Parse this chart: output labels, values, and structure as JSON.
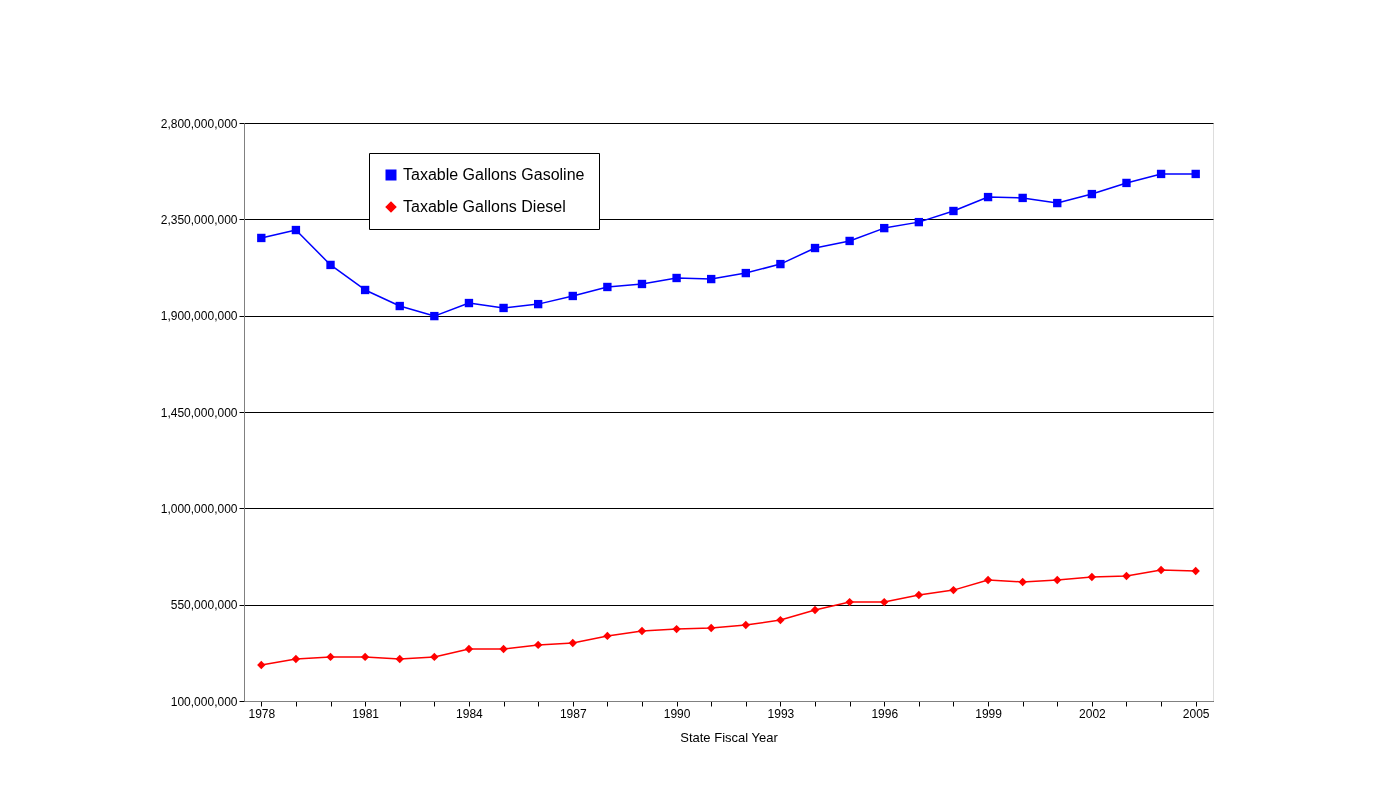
{
  "chart_data": {
    "type": "line",
    "xlabel": "State Fiscal Year",
    "x": [
      1978,
      1979,
      1980,
      1981,
      1982,
      1983,
      1984,
      1985,
      1986,
      1987,
      1988,
      1989,
      1990,
      1991,
      1992,
      1993,
      1994,
      1995,
      1996,
      1997,
      1998,
      1999,
      2000,
      2001,
      2002,
      2003,
      2004,
      2005
    ],
    "series": [
      {
        "name": "Taxable Gallons Gasoline",
        "color": "#0000ff",
        "marker": "square",
        "values": [
          2263000000,
          2300000000,
          2137000000,
          2020000000,
          1945000000,
          1898000000,
          1959000000,
          1936000000,
          1954000000,
          1992000000,
          2034000000,
          2048000000,
          2076000000,
          2071000000,
          2099000000,
          2141000000,
          2216000000,
          2249000000,
          2309000000,
          2337000000,
          2389000000,
          2454000000,
          2450000000,
          2426000000,
          2468000000,
          2520000000,
          2562000000,
          2562000000
        ]
      },
      {
        "name": "Taxable Gallons Diesel",
        "color": "#ff0000",
        "marker": "diamond",
        "values": [
          268000000,
          296000000,
          306000000,
          306000000,
          296000000,
          306000000,
          343000000,
          343000000,
          362000000,
          371000000,
          404000000,
          427000000,
          436000000,
          441000000,
          455000000,
          478000000,
          525000000,
          562000000,
          562000000,
          595000000,
          618000000,
          665000000,
          656000000,
          665000000,
          679000000,
          684000000,
          712000000,
          707000000
        ]
      }
    ],
    "xlim": [
      1977.5,
      2005.5
    ],
    "xticks": [
      1978,
      {
        "value": 1979,
        "label": null
      },
      {
        "value": 1980,
        "label": null
      },
      1981,
      {
        "value": 1982,
        "label": null
      },
      {
        "value": 1983,
        "label": null
      },
      1984,
      {
        "value": 1985,
        "label": null
      },
      {
        "value": 1986,
        "label": null
      },
      1987,
      {
        "value": 1988,
        "label": null
      },
      {
        "value": 1989,
        "label": null
      },
      1990,
      {
        "value": 1991,
        "label": null
      },
      {
        "value": 1992,
        "label": null
      },
      1993,
      {
        "value": 1994,
        "label": null
      },
      {
        "value": 1995,
        "label": null
      },
      1996,
      {
        "value": 1997,
        "label": null
      },
      {
        "value": 1998,
        "label": null
      },
      1999,
      {
        "value": 2000,
        "label": null
      },
      {
        "value": 2001,
        "label": null
      },
      2002,
      {
        "value": 2003,
        "label": null
      },
      {
        "value": 2004,
        "label": null
      },
      2005
    ],
    "ylim": [
      100000000,
      2800000000
    ],
    "yticks": [
      {
        "value": 100000000,
        "label": "100,000,000"
      },
      {
        "value": 550000000,
        "label": "550,000,000"
      },
      {
        "value": 1000000000,
        "label": "1,000,000,000"
      },
      {
        "value": 1450000000,
        "label": "1,450,000,000"
      },
      {
        "value": 1900000000,
        "label": "1,900,000,000"
      },
      {
        "value": 2350000000,
        "label": "2,350,000,000"
      },
      {
        "value": 2800000000,
        "label": "2,800,000,000"
      }
    ],
    "grid": "y",
    "legend": "top left",
    "line_style": "solid"
  }
}
